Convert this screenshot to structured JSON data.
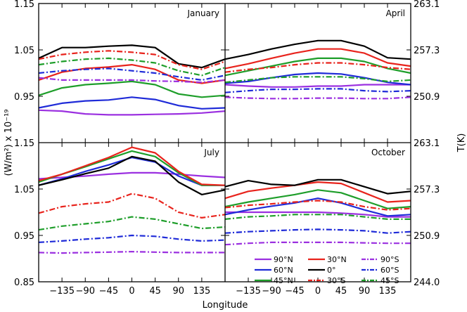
{
  "chart_data": {
    "type": "line",
    "xlabel": "Longitude",
    "ylabel": "(W/m²) x 10⁻¹⁹",
    "y2label": "T(K)",
    "x_ticks": [
      -135,
      -90,
      -45,
      0,
      45,
      90,
      135
    ],
    "x_tick_labels": [
      "−135",
      "−90",
      "−45",
      "0",
      "45",
      "90",
      "135"
    ],
    "xlim": [
      -180,
      180
    ],
    "ylim": [
      0.85,
      1.15
    ],
    "y_ticks": [
      0.85,
      0.95,
      1.05,
      1.15
    ],
    "y_tick_labels": [
      "0.85",
      "0.95",
      "1.05",
      "1.15"
    ],
    "y2_ticks": [
      244.0,
      250.9,
      257.3,
      263.1
    ],
    "y2_tick_labels": [
      "244.0",
      "250.9",
      "257.3",
      "263.1"
    ],
    "grid": false,
    "legend_position": "bottom-right",
    "series_styles": [
      {
        "name": "90°N",
        "color": "#9b30e0",
        "dash": "solid"
      },
      {
        "name": "60°N",
        "color": "#1f2bd8",
        "dash": "solid"
      },
      {
        "name": "45°N",
        "color": "#1e9e2a",
        "dash": "solid"
      },
      {
        "name": "30°N",
        "color": "#e8231c",
        "dash": "solid"
      },
      {
        "name": "0°",
        "color": "#000000",
        "dash": "solid"
      },
      {
        "name": "30°S",
        "color": "#e8231c",
        "dash": "dashdot"
      },
      {
        "name": "90°S",
        "color": "#9b30e0",
        "dash": "dashdot"
      },
      {
        "name": "60°S",
        "color": "#1f2bd8",
        "dash": "dashdot"
      },
      {
        "name": "45°S",
        "color": "#1e9e2a",
        "dash": "dashdot"
      }
    ],
    "legend_order": [
      "90°N",
      "30°N",
      "90°S",
      "60°N",
      "0°",
      "60°S",
      "45°N",
      "30°S",
      "45°S"
    ],
    "x": [
      -180,
      -135,
      -90,
      -45,
      0,
      45,
      90,
      135,
      180
    ],
    "panels": [
      {
        "title": "January",
        "series": [
          {
            "name": "90°N",
            "values": [
              0.92,
              0.918,
              0.912,
              0.91,
              0.91,
              0.911,
              0.912,
              0.914,
              0.918
            ]
          },
          {
            "name": "60°N",
            "values": [
              0.925,
              0.935,
              0.94,
              0.942,
              0.948,
              0.943,
              0.93,
              0.923,
              0.925
            ]
          },
          {
            "name": "45°N",
            "values": [
              0.952,
              0.968,
              0.975,
              0.978,
              0.982,
              0.975,
              0.955,
              0.948,
              0.952
            ]
          },
          {
            "name": "30°N",
            "values": [
              0.985,
              1.002,
              1.01,
              1.013,
              1.018,
              1.008,
              0.985,
              0.978,
              0.985
            ]
          },
          {
            "name": "0°",
            "values": [
              1.032,
              1.055,
              1.055,
              1.058,
              1.06,
              1.055,
              1.02,
              1.012,
              1.03
            ]
          },
          {
            "name": "30°S",
            "values": [
              1.03,
              1.04,
              1.045,
              1.048,
              1.045,
              1.04,
              1.018,
              1.008,
              1.025
            ]
          },
          {
            "name": "90°S",
            "values": [
              0.99,
              0.985,
              0.985,
              0.985,
              0.985,
              0.983,
              0.982,
              0.98,
              0.985
            ]
          },
          {
            "name": "60°S",
            "values": [
              1.0,
              1.005,
              1.008,
              1.01,
              1.005,
              1.0,
              0.992,
              0.985,
              0.995
            ]
          },
          {
            "name": "45°S",
            "values": [
              1.018,
              1.025,
              1.03,
              1.032,
              1.028,
              1.022,
              1.005,
              0.995,
              1.012
            ]
          }
        ]
      },
      {
        "title": "April",
        "series": [
          {
            "name": "90°N",
            "values": [
              0.975,
              0.972,
              0.97,
              0.97,
              0.972,
              0.972,
              0.975,
              0.975,
              0.975
            ]
          },
          {
            "name": "60°N",
            "values": [
              0.978,
              0.982,
              0.99,
              0.997,
              1.0,
              0.998,
              0.99,
              0.98,
              0.975
            ]
          },
          {
            "name": "45°N",
            "values": [
              0.995,
              1.005,
              1.015,
              1.025,
              1.032,
              1.032,
              1.025,
              1.01,
              1.0
            ]
          },
          {
            "name": "30°N",
            "values": [
              1.01,
              1.02,
              1.032,
              1.043,
              1.052,
              1.052,
              1.043,
              1.022,
              1.015
            ]
          },
          {
            "name": "0°",
            "values": [
              1.03,
              1.04,
              1.052,
              1.062,
              1.07,
              1.07,
              1.058,
              1.033,
              1.03
            ]
          },
          {
            "name": "30°S",
            "values": [
              1.002,
              1.008,
              1.012,
              1.018,
              1.022,
              1.022,
              1.018,
              1.012,
              1.008
            ]
          },
          {
            "name": "90°S",
            "values": [
              0.948,
              0.946,
              0.945,
              0.945,
              0.946,
              0.946,
              0.945,
              0.945,
              0.948
            ]
          },
          {
            "name": "60°S",
            "values": [
              0.958,
              0.962,
              0.965,
              0.965,
              0.966,
              0.966,
              0.962,
              0.96,
              0.962
            ]
          },
          {
            "name": "45°S",
            "values": [
              0.98,
              0.985,
              0.99,
              0.992,
              0.992,
              0.992,
              0.988,
              0.982,
              0.985
            ]
          }
        ]
      },
      {
        "title": "July",
        "series": [
          {
            "name": "90°N",
            "values": [
              1.072,
              1.075,
              1.078,
              1.082,
              1.085,
              1.085,
              1.082,
              1.078,
              1.075
            ]
          },
          {
            "name": "60°N",
            "values": [
              1.058,
              1.072,
              1.088,
              1.102,
              1.118,
              1.108,
              1.078,
              1.058,
              1.058
            ]
          },
          {
            "name": "45°N",
            "values": [
              1.065,
              1.082,
              1.098,
              1.115,
              1.132,
              1.12,
              1.085,
              1.058,
              1.058
            ]
          },
          {
            "name": "30°N",
            "values": [
              1.068,
              1.082,
              1.1,
              1.118,
              1.14,
              1.128,
              1.088,
              1.06,
              1.058
            ]
          },
          {
            "name": "0°",
            "values": [
              1.058,
              1.07,
              1.083,
              1.095,
              1.12,
              1.11,
              1.065,
              1.038,
              1.048
            ]
          },
          {
            "name": "30°S",
            "values": [
              0.998,
              1.012,
              1.018,
              1.022,
              1.04,
              1.03,
              1.0,
              0.988,
              0.995
            ]
          },
          {
            "name": "90°S",
            "values": [
              0.913,
              0.912,
              0.913,
              0.914,
              0.915,
              0.914,
              0.913,
              0.913,
              0.913
            ]
          },
          {
            "name": "60°S",
            "values": [
              0.935,
              0.938,
              0.942,
              0.945,
              0.95,
              0.948,
              0.942,
              0.938,
              0.94
            ]
          },
          {
            "name": "45°S",
            "values": [
              0.962,
              0.97,
              0.975,
              0.98,
              0.99,
              0.985,
              0.975,
              0.965,
              0.968
            ]
          }
        ]
      },
      {
        "title": "October",
        "series": [
          {
            "name": "90°N",
            "values": [
              1.0,
              1.0,
              1.0,
              1.0,
              1.0,
              0.998,
              0.995,
              0.99,
              0.99
            ]
          },
          {
            "name": "60°N",
            "values": [
              0.995,
              1.005,
              1.013,
              1.02,
              1.03,
              1.02,
              1.005,
              0.992,
              0.995
            ]
          },
          {
            "name": "45°N",
            "values": [
              1.012,
              1.022,
              1.03,
              1.038,
              1.048,
              1.042,
              1.025,
              1.008,
              1.012
            ]
          },
          {
            "name": "30°N",
            "values": [
              1.03,
              1.045,
              1.052,
              1.058,
              1.065,
              1.062,
              1.042,
              1.022,
              1.025
            ]
          },
          {
            "name": "0°",
            "values": [
              1.055,
              1.068,
              1.06,
              1.058,
              1.07,
              1.07,
              1.055,
              1.04,
              1.045
            ]
          },
          {
            "name": "30°S",
            "values": [
              1.01,
              1.015,
              1.018,
              1.022,
              1.025,
              1.022,
              1.012,
              1.005,
              1.008
            ]
          },
          {
            "name": "90°S",
            "values": [
              0.93,
              0.933,
              0.935,
              0.935,
              0.935,
              0.935,
              0.934,
              0.933,
              0.933
            ]
          },
          {
            "name": "60°S",
            "values": [
              0.955,
              0.958,
              0.96,
              0.962,
              0.963,
              0.962,
              0.96,
              0.955,
              0.958
            ]
          },
          {
            "name": "45°S",
            "values": [
              0.985,
              0.99,
              0.992,
              0.995,
              0.995,
              0.995,
              0.99,
              0.985,
              0.985
            ]
          }
        ]
      }
    ]
  }
}
